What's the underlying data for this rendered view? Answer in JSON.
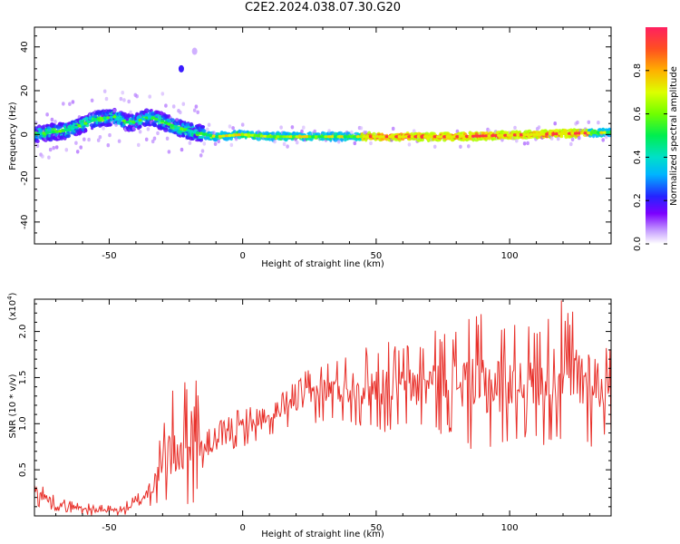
{
  "title": "C2E2.2024.038.07.30.G20",
  "chart_data": [
    {
      "type": "heatmap",
      "xlabel": "Height of straight line (km)",
      "ylabel": "Frequency (Hz)",
      "xlim": [
        -78,
        138
      ],
      "ylim": [
        -50,
        49
      ],
      "xticks": [
        -50,
        0,
        50,
        100
      ],
      "yticks": [
        -40,
        -20,
        0,
        20,
        40
      ],
      "colorbar": {
        "label": "Normalized spectral amplitude",
        "range": [
          0.0,
          1.0
        ],
        "ticks": [
          0.0,
          0.2,
          0.4,
          0.6,
          0.8
        ],
        "tick_labels": [
          "0.0",
          "0.2",
          "0.4",
          "0.6",
          "0.8"
        ],
        "colormap": "rainbow"
      },
      "ridge": {
        "description_points": [
          {
            "x": -78,
            "y": 0
          },
          {
            "x": -65,
            "y": 2
          },
          {
            "x": -55,
            "y": 7
          },
          {
            "x": -48,
            "y": 8
          },
          {
            "x": -42,
            "y": 5
          },
          {
            "x": -35,
            "y": 8
          },
          {
            "x": -30,
            "y": 6
          },
          {
            "x": -24,
            "y": 3
          },
          {
            "x": -18,
            "y": 1
          },
          {
            "x": -10,
            "y": -1
          },
          {
            "x": 0,
            "y": 0
          },
          {
            "x": 10,
            "y": -1
          },
          {
            "x": 20,
            "y": -1
          },
          {
            "x": 50,
            "y": -1
          },
          {
            "x": 80,
            "y": -1
          },
          {
            "x": 110,
            "y": 0
          },
          {
            "x": 138,
            "y": 1
          }
        ],
        "high_amplitude_range_x": [
          45,
          130
        ]
      },
      "isolated_features": [
        {
          "x": -23,
          "y": 30,
          "amplitude": 0.2
        },
        {
          "x": -18,
          "y": 38,
          "amplitude": 0.05
        }
      ]
    },
    {
      "type": "line",
      "xlabel": "Height of straight line (km)",
      "ylabel": "SNR (10 * v/v)",
      "yscale_note": "(x10^4)",
      "xlim": [
        -78,
        138
      ],
      "ylim": [
        0,
        2.35
      ],
      "xticks": [
        -50,
        0,
        50,
        100
      ],
      "yticks": [
        0.5,
        1.0,
        1.5,
        2.0
      ],
      "ytick_labels": [
        "0.5",
        "1.0",
        "1.5",
        "2.0"
      ],
      "series": [
        {
          "color": "#e8302a",
          "envelope": [
            {
              "x": -78,
              "low": 0.1,
              "high": 0.45
            },
            {
              "x": -70,
              "low": 0.05,
              "high": 0.2
            },
            {
              "x": -55,
              "low": 0.0,
              "high": 0.12
            },
            {
              "x": -45,
              "low": 0.0,
              "high": 0.12
            },
            {
              "x": -38,
              "low": 0.05,
              "high": 0.3
            },
            {
              "x": -32,
              "low": 0.1,
              "high": 0.7
            },
            {
              "x": -28,
              "low": 0.05,
              "high": 1.35
            },
            {
              "x": -23,
              "low": 0.1,
              "high": 1.4
            },
            {
              "x": -18,
              "low": 0.1,
              "high": 1.8
            },
            {
              "x": -15,
              "low": 0.5,
              "high": 0.9
            },
            {
              "x": -10,
              "low": 0.6,
              "high": 1.0
            },
            {
              "x": 0,
              "low": 0.75,
              "high": 1.2
            },
            {
              "x": 10,
              "low": 0.85,
              "high": 1.2
            },
            {
              "x": 20,
              "low": 1.0,
              "high": 1.5
            },
            {
              "x": 30,
              "low": 1.0,
              "high": 1.7
            },
            {
              "x": 40,
              "low": 1.0,
              "high": 1.8
            },
            {
              "x": 50,
              "low": 0.9,
              "high": 1.9
            },
            {
              "x": 60,
              "low": 0.9,
              "high": 1.9
            },
            {
              "x": 70,
              "low": 0.9,
              "high": 2.0
            },
            {
              "x": 80,
              "low": 0.85,
              "high": 2.1
            },
            {
              "x": 90,
              "low": 0.6,
              "high": 2.2
            },
            {
              "x": 100,
              "low": 0.8,
              "high": 2.1
            },
            {
              "x": 110,
              "low": 0.8,
              "high": 2.1
            },
            {
              "x": 118,
              "low": 0.7,
              "high": 2.35
            },
            {
              "x": 130,
              "low": 0.7,
              "high": 2.25
            },
            {
              "x": 138,
              "low": 0.9,
              "high": 1.8
            }
          ]
        }
      ]
    }
  ]
}
